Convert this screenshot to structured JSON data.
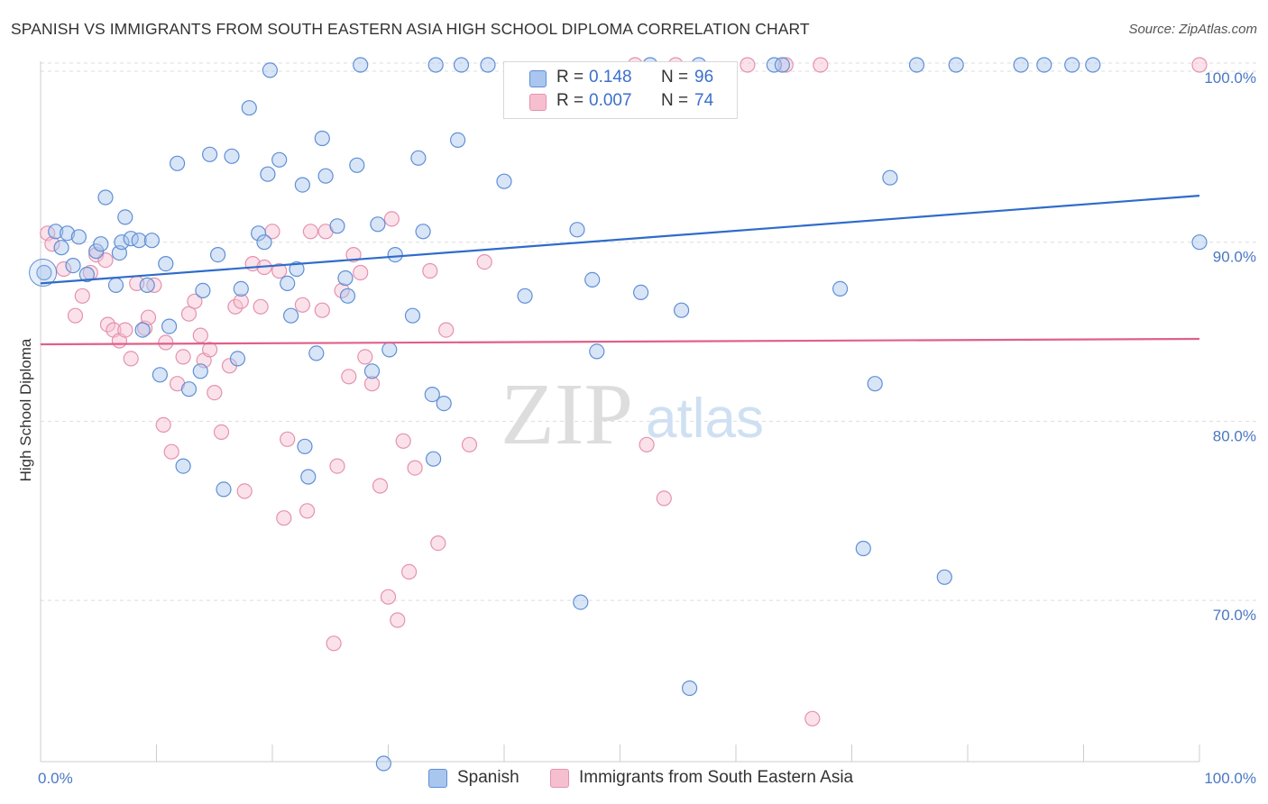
{
  "header": {
    "title": "SPANISH VS IMMIGRANTS FROM SOUTH EASTERN ASIA HIGH SCHOOL DIPLOMA CORRELATION CHART",
    "source": "Source: ZipAtlas.com"
  },
  "watermark": {
    "zip": "ZIP",
    "atlas": "atlas"
  },
  "legend": {
    "series1": {
      "r_label": "R =",
      "r_value": "0.148",
      "n_label": "N =",
      "n_value": "96"
    },
    "series2": {
      "r_label": "R =",
      "r_value": "0.007",
      "n_label": "N =",
      "n_value": "74"
    }
  },
  "bottom_legend": {
    "series1": "Spanish",
    "series2": "Immigrants from South Eastern Asia"
  },
  "colors": {
    "series1_fill": "#a9c6ee",
    "series1_stroke": "#5f8fd6",
    "series1_line": "#2f6cc9",
    "series2_fill": "#f6bfd0",
    "series2_stroke": "#e592ad",
    "series2_line": "#e0608a",
    "grid": "#dddddd",
    "axis_label": "#4a78c2"
  },
  "chart_data": {
    "type": "scatter",
    "xlabel": "",
    "ylabel": "High School Diploma",
    "xlim": [
      0,
      100
    ],
    "ylim": [
      61,
      100
    ],
    "x_tick_labels": [
      "0.0%",
      "100.0%"
    ],
    "y_ticks": [
      {
        "value": 70,
        "label": "70.0%"
      },
      {
        "value": 80,
        "label": "80.0%"
      },
      {
        "value": 90,
        "label": "90.0%"
      },
      {
        "value": 100,
        "label": "100.0%"
      }
    ],
    "grid": "horizontal dashed",
    "legend_position": "top-center",
    "series": [
      {
        "name": "Spanish",
        "trend": {
          "x": [
            0,
            100
          ],
          "y": [
            87.7,
            92.6
          ]
        },
        "points": [
          [
            0.3,
            88.3
          ],
          [
            1.3,
            90.6
          ],
          [
            2.3,
            90.5
          ],
          [
            1.8,
            89.7
          ],
          [
            3.3,
            90.3
          ],
          [
            2.8,
            88.7
          ],
          [
            4.0,
            88.2
          ],
          [
            4.8,
            89.5
          ],
          [
            5.2,
            89.9
          ],
          [
            5.6,
            92.5
          ],
          [
            7.3,
            91.4
          ],
          [
            6.5,
            87.6
          ],
          [
            6.8,
            89.4
          ],
          [
            7.0,
            90.0
          ],
          [
            7.8,
            90.2
          ],
          [
            8.5,
            90.1
          ],
          [
            8.8,
            85.1
          ],
          [
            9.2,
            87.6
          ],
          [
            9.6,
            90.1
          ],
          [
            10.8,
            88.8
          ],
          [
            11.1,
            85.3
          ],
          [
            11.8,
            94.4
          ],
          [
            10.3,
            82.6
          ],
          [
            12.3,
            77.5
          ],
          [
            12.8,
            81.8
          ],
          [
            13.8,
            82.8
          ],
          [
            14.0,
            87.3
          ],
          [
            14.6,
            94.9
          ],
          [
            15.3,
            89.3
          ],
          [
            15.8,
            76.2
          ],
          [
            16.5,
            94.8
          ],
          [
            17.0,
            83.5
          ],
          [
            17.3,
            87.4
          ],
          [
            18.0,
            97.5
          ],
          [
            18.8,
            90.5
          ],
          [
            19.3,
            90.0
          ],
          [
            19.6,
            93.8
          ],
          [
            19.8,
            99.6
          ],
          [
            20.6,
            94.6
          ],
          [
            21.3,
            87.7
          ],
          [
            21.6,
            85.9
          ],
          [
            22.1,
            88.5
          ],
          [
            22.6,
            93.2
          ],
          [
            22.8,
            78.6
          ],
          [
            23.1,
            76.9
          ],
          [
            23.8,
            83.8
          ],
          [
            24.3,
            95.8
          ],
          [
            24.6,
            93.7
          ],
          [
            25.6,
            90.9
          ],
          [
            26.3,
            88.0
          ],
          [
            26.5,
            87.0
          ],
          [
            27.3,
            94.3
          ],
          [
            27.6,
            99.9
          ],
          [
            28.6,
            82.8
          ],
          [
            29.1,
            91.0
          ],
          [
            29.6,
            60.9
          ],
          [
            30.1,
            84.0
          ],
          [
            30.6,
            89.3
          ],
          [
            32.1,
            85.9
          ],
          [
            32.6,
            94.7
          ],
          [
            33.0,
            90.6
          ],
          [
            33.8,
            81.5
          ],
          [
            33.9,
            77.9
          ],
          [
            34.1,
            99.9
          ],
          [
            34.8,
            81.0
          ],
          [
            36.0,
            95.7
          ],
          [
            36.3,
            99.9
          ],
          [
            38.6,
            99.9
          ],
          [
            40.0,
            93.4
          ],
          [
            41.8,
            87.0
          ],
          [
            46.3,
            90.7
          ],
          [
            46.6,
            69.9
          ],
          [
            47.6,
            87.9
          ],
          [
            48.0,
            83.9
          ],
          [
            51.8,
            87.2
          ],
          [
            52.6,
            99.9
          ],
          [
            55.3,
            86.2
          ],
          [
            56.0,
            65.1
          ],
          [
            56.8,
            99.9
          ],
          [
            63.3,
            99.9
          ],
          [
            64.0,
            99.9
          ],
          [
            69.0,
            87.4
          ],
          [
            71.0,
            72.9
          ],
          [
            72.0,
            82.1
          ],
          [
            73.3,
            93.6
          ],
          [
            75.6,
            99.9
          ],
          [
            78.0,
            71.3
          ],
          [
            79.0,
            99.9
          ],
          [
            84.6,
            99.9
          ],
          [
            86.6,
            99.9
          ],
          [
            89.0,
            99.9
          ],
          [
            90.8,
            99.9
          ],
          [
            100.0,
            90.0
          ]
        ]
      },
      {
        "name": "Immigrants from South Eastern Asia",
        "trend": {
          "x": [
            0,
            100
          ],
          "y": [
            84.3,
            84.6
          ]
        },
        "points": [
          [
            0.6,
            90.5
          ],
          [
            1.0,
            89.9
          ],
          [
            2.0,
            88.5
          ],
          [
            3.0,
            85.9
          ],
          [
            3.6,
            87.0
          ],
          [
            4.3,
            88.3
          ],
          [
            4.8,
            89.3
          ],
          [
            5.6,
            89.0
          ],
          [
            5.8,
            85.4
          ],
          [
            6.3,
            85.1
          ],
          [
            6.8,
            84.5
          ],
          [
            7.3,
            85.1
          ],
          [
            7.8,
            83.5
          ],
          [
            8.3,
            87.7
          ],
          [
            9.0,
            85.2
          ],
          [
            9.3,
            85.8
          ],
          [
            9.8,
            87.6
          ],
          [
            10.6,
            79.8
          ],
          [
            10.8,
            84.4
          ],
          [
            11.3,
            78.3
          ],
          [
            11.8,
            82.1
          ],
          [
            12.3,
            83.6
          ],
          [
            12.8,
            86.0
          ],
          [
            13.3,
            86.7
          ],
          [
            13.8,
            84.8
          ],
          [
            14.1,
            83.4
          ],
          [
            14.6,
            84.0
          ],
          [
            15.0,
            81.6
          ],
          [
            15.6,
            79.4
          ],
          [
            16.3,
            83.1
          ],
          [
            16.8,
            86.4
          ],
          [
            17.3,
            86.7
          ],
          [
            17.6,
            76.1
          ],
          [
            18.3,
            88.8
          ],
          [
            19.0,
            86.4
          ],
          [
            19.3,
            88.6
          ],
          [
            20.0,
            90.6
          ],
          [
            20.6,
            88.4
          ],
          [
            21.0,
            74.6
          ],
          [
            21.3,
            79.0
          ],
          [
            22.6,
            86.5
          ],
          [
            23.0,
            75.0
          ],
          [
            23.3,
            90.6
          ],
          [
            24.3,
            86.2
          ],
          [
            24.6,
            90.6
          ],
          [
            25.3,
            67.6
          ],
          [
            25.6,
            77.5
          ],
          [
            26.0,
            87.3
          ],
          [
            26.6,
            82.5
          ],
          [
            27.0,
            89.3
          ],
          [
            27.6,
            88.3
          ],
          [
            28.0,
            83.6
          ],
          [
            28.6,
            82.1
          ],
          [
            29.3,
            76.4
          ],
          [
            30.0,
            70.2
          ],
          [
            30.3,
            91.3
          ],
          [
            30.8,
            68.9
          ],
          [
            31.3,
            78.9
          ],
          [
            31.8,
            71.6
          ],
          [
            32.3,
            77.4
          ],
          [
            33.6,
            88.4
          ],
          [
            34.3,
            73.2
          ],
          [
            35.0,
            85.1
          ],
          [
            37.0,
            78.7
          ],
          [
            38.3,
            88.9
          ],
          [
            51.3,
            99.9
          ],
          [
            52.3,
            78.7
          ],
          [
            53.8,
            75.7
          ],
          [
            54.8,
            99.9
          ],
          [
            61.0,
            99.9
          ],
          [
            64.3,
            99.9
          ],
          [
            66.6,
            63.4
          ],
          [
            67.3,
            99.9
          ],
          [
            100.0,
            99.9
          ]
        ]
      }
    ]
  }
}
